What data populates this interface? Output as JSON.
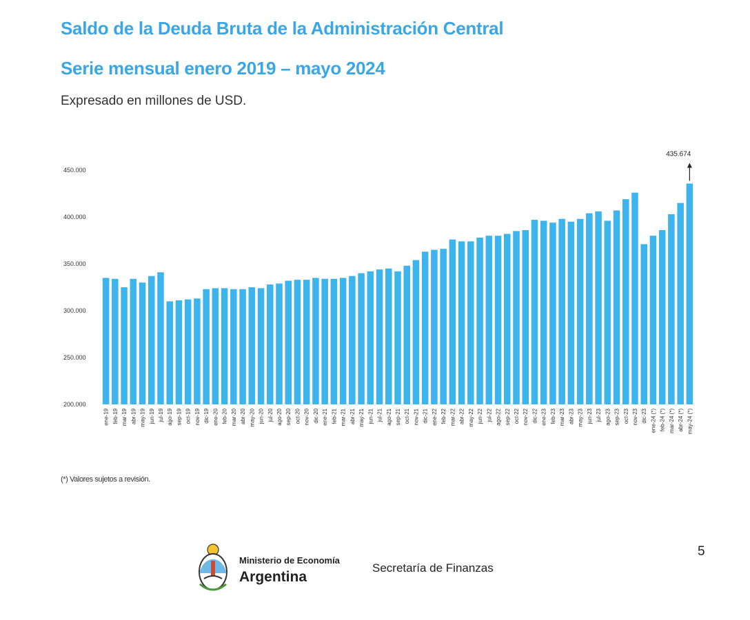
{
  "header": {
    "title": "Saldo de la Deuda Bruta de la Administración Central",
    "subtitle": "Serie mensual enero 2019 – mayo 2024",
    "unit_note": "Expresado en millones de USD."
  },
  "footnote": "(*) Valores sujetos a revisión.",
  "footer": {
    "ministry": "Ministerio de Economía",
    "country": "Argentina",
    "secretariat": "Secretaría de Finanzas",
    "page_number": "5"
  },
  "colors": {
    "bar": "#3db4ec",
    "title": "#3aa6e6",
    "text": "#333333"
  },
  "chart_data": {
    "type": "bar",
    "title": "Saldo de la Deuda Bruta de la Administración Central",
    "ylabel": "Expresado en millones de USD.",
    "xlabel": "",
    "ylim": [
      200000,
      450000
    ],
    "yticks": [
      "200.000",
      "250.000",
      "300.000",
      "350.000",
      "400.000",
      "450.000"
    ],
    "grid": false,
    "categories": [
      "ene-19",
      "feb-19",
      "mar-19",
      "abr-19",
      "may-19",
      "jun-19",
      "jul-19",
      "ago-19",
      "sep-19",
      "oct-19",
      "nov-19",
      "dic-19",
      "ene-20",
      "feb-20",
      "mar-20",
      "abr-20",
      "may-20",
      "jun-20",
      "jul-20",
      "ago-20",
      "sep-20",
      "oct-20",
      "nov-20",
      "dic-20",
      "ene-21",
      "feb-21",
      "mar-21",
      "abr-21",
      "may-21",
      "jun-21",
      "jul-21",
      "ago-21",
      "sep-21",
      "oct-21",
      "nov-21",
      "dic-21",
      "ene-22",
      "feb-22",
      "mar-22",
      "abr-22",
      "may-22",
      "jun-22",
      "jul-22",
      "ago-22",
      "sep-22",
      "oct-22",
      "nov-22",
      "dic-22",
      "ene-23",
      "feb-23",
      "mar-23",
      "abr-23",
      "may-23",
      "jun-23",
      "jul-23",
      "ago-23",
      "sep-23",
      "oct-23",
      "nov-23",
      "dic-23",
      "ene-24 (*)",
      "feb-24 (*)",
      "mar-24 (*)",
      "abr-24 (*)",
      "may-24 (*)"
    ],
    "values": [
      335000,
      334000,
      325000,
      334000,
      330000,
      337000,
      341000,
      310000,
      311000,
      312000,
      313000,
      323000,
      324000,
      324000,
      323000,
      323000,
      325000,
      324000,
      328000,
      329000,
      332000,
      333000,
      333000,
      335000,
      334000,
      334000,
      335000,
      337000,
      340000,
      342000,
      344000,
      345000,
      342000,
      348000,
      354000,
      363000,
      365000,
      366000,
      376000,
      374000,
      374000,
      378000,
      380000,
      380000,
      382000,
      385000,
      386000,
      397000,
      396000,
      394000,
      398000,
      395000,
      398000,
      404000,
      406000,
      396000,
      407000,
      419000,
      426000,
      371000,
      380000,
      386000,
      403000,
      415000,
      435674
    ],
    "annotation": {
      "label": "435.674",
      "category": "may-24 (*)"
    }
  }
}
